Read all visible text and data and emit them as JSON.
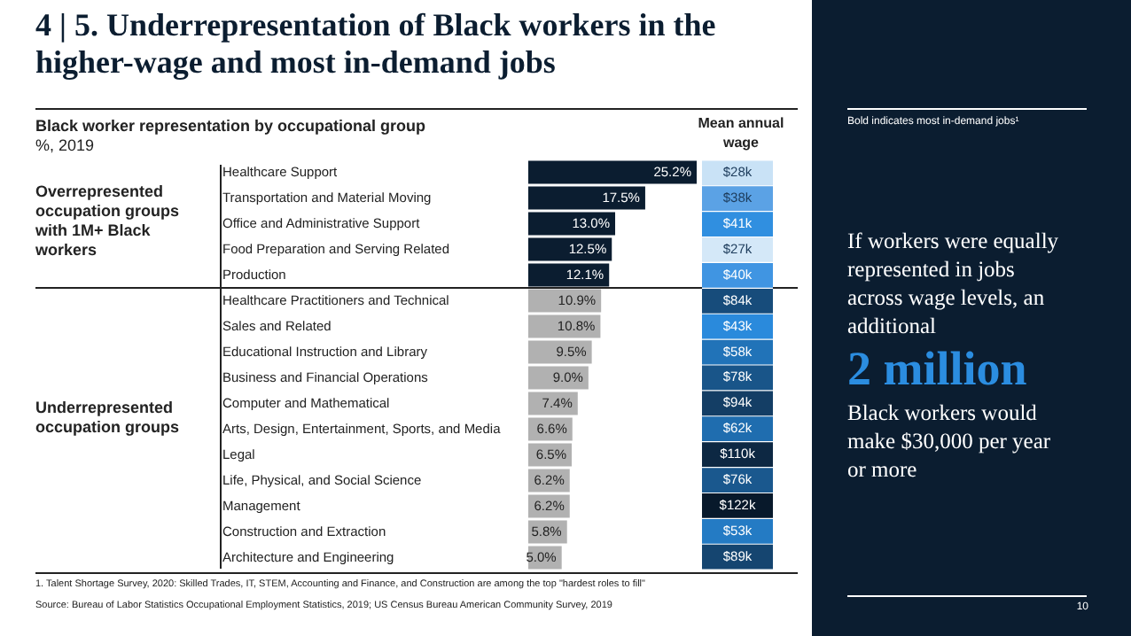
{
  "chart_data": [
    {
      "type": "bar",
      "orientation": "horizontal",
      "title": "4 | 5. Underrepresentation of Black workers in the higher-wage and most in-demand jobs",
      "subtitle": "Black worker representation by occupational group\n%, 2019",
      "categories": [
        "Healthcare Support",
        "Transportation and Material Moving",
        "Office and Administrative Support",
        "Food Preparation and Serving Related",
        "Production",
        "Healthcare Practitioners and Technical",
        "Sales and Related",
        "Educational Instruction and Library",
        "Business and Financial Operations",
        "Computer and Mathematical",
        "Arts, Design, Entertainment, Sports, and Media",
        "Legal",
        "Life, Physical, and Social Science",
        "Management",
        "Construction and Extraction",
        "Architecture and Engineering"
      ],
      "values": [
        25.2,
        17.5,
        13.0,
        12.5,
        12.1,
        10.9,
        10.8,
        9.5,
        9.0,
        7.4,
        6.6,
        6.5,
        6.2,
        6.2,
        5.8,
        5.0
      ],
      "value_labels": [
        "25.2%",
        "17.5%",
        "13.0%",
        "12.5%",
        "12.1%",
        "10.9%",
        "10.8%",
        "9.5%",
        "9.0%",
        "7.4%",
        "6.6%",
        "6.5%",
        "6.2%",
        "6.2%",
        "5.8%",
        "5.0%"
      ],
      "colors": [
        "#0b1d30",
        "#0b1d30",
        "#0b1d30",
        "#0b1d30",
        "#0b1d30",
        "#b1b1b1",
        "#b1b1b1",
        "#b1b1b1",
        "#b1b1b1",
        "#b1b1b1",
        "#b1b1b1",
        "#b1b1b1",
        "#b1b1b1",
        "#b1b1b1",
        "#b1b1b1",
        "#b1b1b1"
      ],
      "tick_labels": "y",
      "annotations": [
        "Overrepresented occupation groups with 1M+ Black workers",
        "Underrepresented occupation groups",
        "1.    Talent Shortage Survey, 2020: Skilled Trades, IT, STEM, Accounting and Finance, and Construction are among the top \"hardest roles to fill\"",
        "Source: Bureau of Labor Statistics Occupational Employment Statistics, 2019; US Census Bureau American Community Survey, 2019"
      ]
    },
    {
      "type": "heatmap",
      "title": "Mean annual wage",
      "categories": [
        null
      ],
      "y_categories": [
        null,
        null,
        null,
        null,
        null,
        null,
        null,
        null,
        null,
        null,
        null,
        null,
        null,
        null,
        null,
        null
      ],
      "cells": [
        [
          28
        ],
        [
          38
        ],
        [
          41
        ],
        [
          27
        ],
        [
          40
        ],
        [
          84
        ],
        [
          43
        ],
        [
          58
        ],
        [
          78
        ],
        [
          94
        ],
        [
          62
        ],
        [
          110
        ],
        [
          76
        ],
        [
          122
        ],
        [
          53
        ],
        [
          89
        ]
      ],
      "cell_labels": [
        [
          "$28k"
        ],
        [
          "$38k"
        ],
        [
          "$41k"
        ],
        [
          "$27k"
        ],
        [
          "$40k"
        ],
        [
          "$84k"
        ],
        [
          "$43k"
        ],
        [
          "$58k"
        ],
        [
          "$78k"
        ],
        [
          "$94k"
        ],
        [
          "$62k"
        ],
        [
          "$110k"
        ],
        [
          "$76k"
        ],
        [
          "$122k"
        ],
        [
          "$53k"
        ],
        [
          "$89k"
        ]
      ]
    },
    {
      "type": "other",
      "annotations": [
        "Bold indicates most in-demand jobs¹",
        "If workers were equally represented in jobs across wage levels, an additional",
        "2 million",
        "Black workers would make $30,000 per year or more",
        "10"
      ]
    }
  ]
}
